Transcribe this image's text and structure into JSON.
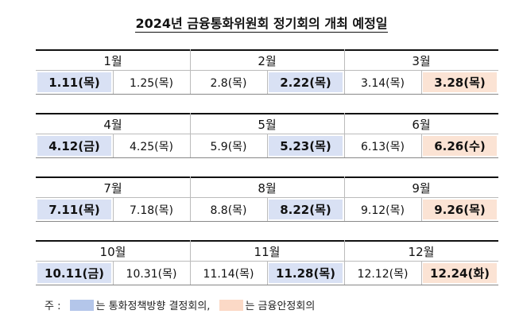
{
  "title": "2024년 금융통화위원회 정기회의 개최 예정일",
  "months": [
    {
      "label": "1월",
      "dates": [
        {
          "text": "1.11(목)",
          "color": "#d9e1f4"
        },
        {
          "text": "1.25(목)"
        }
      ]
    },
    {
      "label": "2월",
      "dates": [
        {
          "text": "2.8(목)"
        },
        {
          "text": "2.22(목)",
          "color": "#d9e1f4"
        }
      ]
    },
    {
      "label": "3월",
      "dates": [
        {
          "text": "3.14(목)"
        },
        {
          "text": "3.28(목)",
          "color": "#fbe3d4"
        }
      ]
    },
    {
      "label": "4월",
      "dates": [
        {
          "text": "4.12(금)",
          "color": "#d9e1f4"
        },
        {
          "text": "4.25(목)"
        }
      ]
    },
    {
      "label": "5월",
      "dates": [
        {
          "text": "5.9(목)"
        },
        {
          "text": "5.23(목)",
          "color": "#d9e1f4"
        }
      ]
    },
    {
      "label": "6월",
      "dates": [
        {
          "text": "6.13(목)"
        },
        {
          "text": "6.26(수)",
          "color": "#fbe3d4"
        }
      ]
    },
    {
      "label": "7월",
      "dates": [
        {
          "text": "7.11(목)",
          "color": "#d9e1f4"
        },
        {
          "text": "7.18(목)"
        }
      ]
    },
    {
      "label": "8월",
      "dates": [
        {
          "text": "8.8(목)"
        },
        {
          "text": "8.22(목)",
          "color": "#d9e1f4"
        }
      ]
    },
    {
      "label": "9월",
      "dates": [
        {
          "text": "9.12(목)"
        },
        {
          "text": "9.26(목)",
          "color": "#fbe3d4"
        }
      ]
    },
    {
      "label": "10월",
      "dates": [
        {
          "text": "10.11(금)",
          "color": "#d9e1f4"
        },
        {
          "text": "10.31(목)"
        }
      ]
    },
    {
      "label": "11월",
      "dates": [
        {
          "text": "11.14(목)"
        },
        {
          "text": "11.28(목)",
          "color": "#d9e1f4"
        }
      ]
    },
    {
      "label": "12월",
      "dates": [
        {
          "text": "12.12(목)"
        },
        {
          "text": "12.24(화)",
          "color": "#fbe3d4"
        }
      ]
    }
  ],
  "note": {
    "prefix": "주 :",
    "items": [
      {
        "color": "#b4c6ea",
        "label": "는 통화정책방향 결정회의,"
      },
      {
        "color": "#fbd9c6",
        "label": "는 금융안정회의"
      }
    ]
  }
}
